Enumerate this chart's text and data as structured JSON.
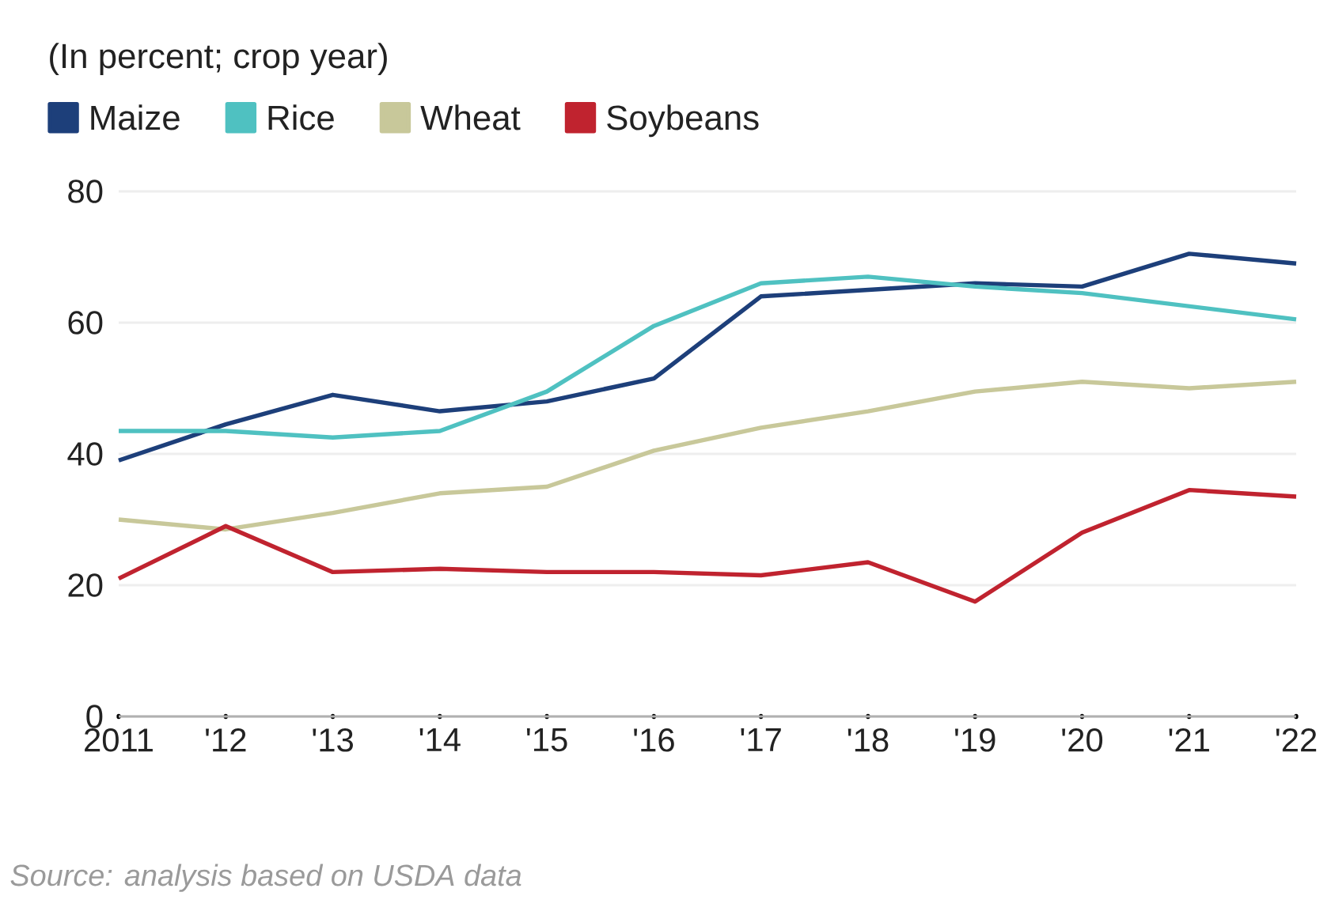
{
  "chart_data": {
    "type": "line",
    "subtitle": "(In percent; crop year)",
    "categories": [
      "2011",
      "'12",
      "'13",
      "'14",
      "'15",
      "'16",
      "'17",
      "'18",
      "'19",
      "'20",
      "'21",
      "'22"
    ],
    "series": [
      {
        "name": "Maize",
        "color": "#1d3f7a",
        "values": [
          39,
          44.5,
          49,
          46.5,
          48,
          51.5,
          64,
          65,
          66,
          65.5,
          70.5,
          69
        ]
      },
      {
        "name": "Rice",
        "color": "#4fc1c1",
        "values": [
          43.5,
          43.5,
          42.5,
          43.5,
          49.5,
          59.5,
          66,
          67,
          65.5,
          64.5,
          62.5,
          60.5
        ]
      },
      {
        "name": "Wheat",
        "color": "#c8c89a",
        "values": [
          30,
          28.5,
          31,
          34,
          35,
          40.5,
          44,
          46.5,
          49.5,
          51,
          50,
          51
        ]
      },
      {
        "name": "Soybeans",
        "color": "#c0232f",
        "values": [
          21,
          29,
          22,
          22.5,
          22,
          22,
          21.5,
          23.5,
          17.5,
          28,
          34.5,
          33.5
        ]
      }
    ],
    "ylim": [
      0,
      80
    ],
    "yticks": [
      0,
      20,
      40,
      60,
      80
    ],
    "grid": "y",
    "legend": "top left",
    "annotations": [
      "Source: analysis based on USDA data"
    ]
  }
}
